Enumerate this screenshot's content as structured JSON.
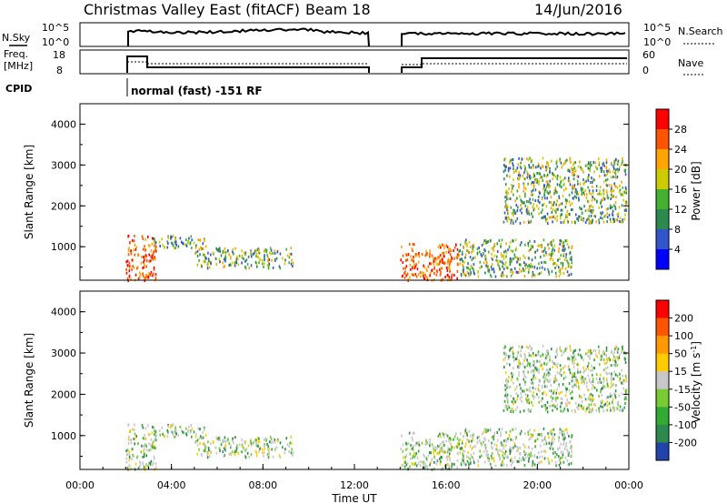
{
  "header": {
    "title": "Christmas Valley East (fitACF)",
    "beam": "Beam 18",
    "date": "14/Jun/2016"
  },
  "sky_panel": {
    "left_label": "N.Sky",
    "right_label": "N.Search",
    "ticks": [
      "10^5",
      "10^0"
    ]
  },
  "freq_panel": {
    "left_label_line1": "Freq.",
    "left_label_line2": "[MHz]",
    "right_label": "Nave",
    "left_ticks": [
      "18",
      "8"
    ],
    "right_ticks": [
      "60",
      "0"
    ]
  },
  "cpid": {
    "label": "CPID",
    "mode_text": "normal (fast) -151 RF"
  },
  "chart_data": [
    {
      "type": "heatmap",
      "panel": "power",
      "ylabel": "Slant Range [km]",
      "ylim": [
        180,
        4500
      ],
      "yticks": [
        "1000",
        "2000",
        "3000",
        "4000"
      ],
      "xlim": [
        0,
        24
      ],
      "colorbar_label": "Power [dB]",
      "colorbar_ticks": [
        "4",
        "8",
        "12",
        "16",
        "20",
        "24",
        "28"
      ],
      "colorbar_colors": [
        "#0000ff",
        "#3355cc",
        "#2d8a4e",
        "#46b030",
        "#cccc00",
        "#ffa500",
        "#ff5500",
        "#ff0000"
      ],
      "data_gaps_hours": [
        [
          12.7,
          14.0
        ]
      ],
      "regions": [
        {
          "t": [
            2.0,
            3.3
          ],
          "r": [
            200,
            1300
          ],
          "level": "high"
        },
        {
          "t": [
            3.2,
            5.6
          ],
          "r": [
            1000,
            1300
          ],
          "level": "mid"
        },
        {
          "t": [
            5.0,
            9.3
          ],
          "r": [
            500,
            1000
          ],
          "level": "mid"
        },
        {
          "t": [
            14.0,
            16.5
          ],
          "r": [
            200,
            1100
          ],
          "level": "high"
        },
        {
          "t": [
            16.5,
            21.5
          ],
          "r": [
            300,
            1200
          ],
          "level": "mid"
        },
        {
          "t": [
            18.5,
            23.9
          ],
          "r": [
            1600,
            3200
          ],
          "level": "mid"
        }
      ]
    },
    {
      "type": "heatmap",
      "panel": "velocity",
      "ylabel": "Slant Range [km]",
      "xlabel": "Time UT",
      "ylim": [
        180,
        4500
      ],
      "yticks": [
        "1000",
        "2000",
        "3000",
        "4000"
      ],
      "xticks": [
        "00:00",
        "04:00",
        "08:00",
        "12:00",
        "16:00",
        "20:00",
        "00:00"
      ],
      "xlim": [
        0,
        24
      ],
      "colorbar_label": "Velocity [m s^-1]",
      "colorbar_ticks": [
        "200",
        "100",
        "50",
        "15",
        "-15",
        "-50",
        "-100",
        "-200"
      ],
      "colorbar_colors": [
        "#2244aa",
        "#2d8a4e",
        "#33aa33",
        "#77cc33",
        "#c8c8c8",
        "#ffcc00",
        "#ff9900",
        "#ff5500",
        "#ff0000"
      ],
      "data_gaps_hours": [
        [
          12.7,
          14.0
        ]
      ]
    }
  ]
}
